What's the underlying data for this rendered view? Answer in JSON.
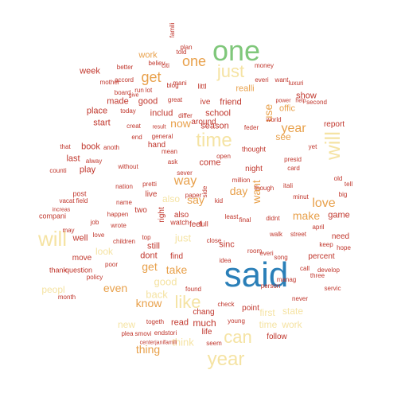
{
  "palette": {
    "red": "#c0362c",
    "orange": "#e8a04a",
    "cream": "#f5e3a3",
    "green": "#7fc77a",
    "blue": "#2a7fb8"
  },
  "words": [
    {
      "text": "said",
      "color": "blue"
    },
    {
      "text": "one",
      "color": "green"
    },
    {
      "text": "will",
      "color": "cream"
    },
    {
      "text": "will",
      "color": "cream"
    },
    {
      "text": "year",
      "color": "cream"
    },
    {
      "text": "just",
      "color": "cream"
    },
    {
      "text": "time",
      "color": "cream"
    },
    {
      "text": "like",
      "color": "cream"
    },
    {
      "text": "can",
      "color": "cream"
    },
    {
      "text": "get",
      "color": "orange"
    },
    {
      "text": "one",
      "color": "orange"
    },
    {
      "text": "year",
      "color": "orange"
    },
    {
      "text": "love",
      "color": "orange"
    },
    {
      "text": "way",
      "color": "orange"
    },
    {
      "text": "make",
      "color": "orange"
    },
    {
      "text": "know",
      "color": "orange"
    },
    {
      "text": "even",
      "color": "orange"
    },
    {
      "text": "thing",
      "color": "orange"
    },
    {
      "text": "take",
      "color": "orange"
    },
    {
      "text": "get",
      "color": "orange"
    },
    {
      "text": "day",
      "color": "orange"
    },
    {
      "text": "say",
      "color": "orange"
    },
    {
      "text": "now",
      "color": "orange"
    },
    {
      "text": "see",
      "color": "orange"
    },
    {
      "text": "use",
      "color": "orange"
    },
    {
      "text": "want",
      "color": "orange"
    },
    {
      "text": "just",
      "color": "cream"
    },
    {
      "text": "think",
      "color": "cream"
    },
    {
      "text": "back",
      "color": "cream"
    },
    {
      "text": "good",
      "color": "cream"
    },
    {
      "text": "peopl",
      "color": "cream"
    },
    {
      "text": "first",
      "color": "cream"
    },
    {
      "text": "state",
      "color": "cream"
    },
    {
      "text": "time",
      "color": "cream"
    },
    {
      "text": "work",
      "color": "cream"
    },
    {
      "text": "look",
      "color": "cream"
    },
    {
      "text": "new",
      "color": "cream"
    },
    {
      "text": "much",
      "color": "red"
    },
    {
      "text": "also",
      "color": "cream"
    },
    {
      "text": "work",
      "color": "orange"
    },
    {
      "text": "show",
      "color": "red"
    },
    {
      "text": "made",
      "color": "red"
    },
    {
      "text": "good",
      "color": "red"
    },
    {
      "text": "place",
      "color": "red"
    },
    {
      "text": "start",
      "color": "red"
    },
    {
      "text": "book",
      "color": "red"
    },
    {
      "text": "play",
      "color": "red"
    },
    {
      "text": "school",
      "color": "red"
    },
    {
      "text": "friend",
      "color": "red"
    },
    {
      "text": "season",
      "color": "red"
    },
    {
      "text": "come",
      "color": "red"
    },
    {
      "text": "includ",
      "color": "red"
    },
    {
      "text": "last",
      "color": "red"
    },
    {
      "text": "week",
      "color": "red"
    },
    {
      "text": "realli",
      "color": "orange"
    },
    {
      "text": "offic",
      "color": "orange"
    },
    {
      "text": "game",
      "color": "red"
    },
    {
      "text": "need",
      "color": "red"
    },
    {
      "text": "well",
      "color": "red"
    },
    {
      "text": "still",
      "color": "red"
    },
    {
      "text": "dont",
      "color": "red"
    },
    {
      "text": "find",
      "color": "red"
    },
    {
      "text": "sinc",
      "color": "red"
    },
    {
      "text": "point",
      "color": "red"
    },
    {
      "text": "follow",
      "color": "red"
    },
    {
      "text": "read",
      "color": "red"
    },
    {
      "text": "life",
      "color": "red"
    },
    {
      "text": "chang",
      "color": "red"
    },
    {
      "text": "hand",
      "color": "red"
    },
    {
      "text": "report",
      "color": "red"
    },
    {
      "text": "percent",
      "color": "red"
    },
    {
      "text": "move",
      "color": "red"
    },
    {
      "text": "night",
      "color": "red"
    },
    {
      "text": "famili",
      "color": "red"
    },
    {
      "text": "told",
      "color": "red"
    },
    {
      "text": "mani",
      "color": "red"
    },
    {
      "text": "plan",
      "color": "red"
    },
    {
      "text": "citi",
      "color": "red"
    },
    {
      "text": "blog",
      "color": "red"
    },
    {
      "text": "littl",
      "color": "red"
    },
    {
      "text": "ive",
      "color": "red"
    },
    {
      "text": "around",
      "color": "red"
    },
    {
      "text": "thought",
      "color": "red"
    },
    {
      "text": "right",
      "color": "red"
    },
    {
      "text": "two",
      "color": "red"
    },
    {
      "text": "live",
      "color": "red"
    },
    {
      "text": "also",
      "color": "red"
    },
    {
      "text": "feel",
      "color": "red"
    },
    {
      "text": "watch",
      "color": "red"
    },
    {
      "text": "full",
      "color": "red"
    },
    {
      "text": "happen",
      "color": "red"
    },
    {
      "text": "compani",
      "color": "red"
    },
    {
      "text": "post",
      "color": "red"
    },
    {
      "text": "question",
      "color": "red"
    },
    {
      "text": "thank",
      "color": "red"
    },
    {
      "text": "month",
      "color": "red"
    },
    {
      "text": "plea",
      "color": "red"
    },
    {
      "text": "smovi",
      "color": "red"
    },
    {
      "text": "endstori",
      "color": "red"
    },
    {
      "text": "togeth",
      "color": "red"
    },
    {
      "text": "centerjanifamili",
      "color": "red"
    },
    {
      "text": "seem",
      "color": "red"
    },
    {
      "text": "young",
      "color": "red"
    },
    {
      "text": "call",
      "color": "red"
    },
    {
      "text": "manag",
      "color": "red"
    },
    {
      "text": "person",
      "color": "red"
    },
    {
      "text": "never",
      "color": "red"
    },
    {
      "text": "servic",
      "color": "red"
    },
    {
      "text": "develop",
      "color": "red"
    },
    {
      "text": "hope",
      "color": "red"
    },
    {
      "text": "three",
      "color": "red"
    },
    {
      "text": "keep",
      "color": "red"
    },
    {
      "text": "big",
      "color": "red"
    },
    {
      "text": "old",
      "color": "red"
    },
    {
      "text": "second",
      "color": "red"
    },
    {
      "text": "money",
      "color": "red"
    },
    {
      "text": "everi",
      "color": "red"
    },
    {
      "text": "want",
      "color": "red"
    },
    {
      "text": "luxuri",
      "color": "red"
    },
    {
      "text": "better",
      "color": "red"
    },
    {
      "text": "believ",
      "color": "red"
    },
    {
      "text": "accord",
      "color": "red"
    },
    {
      "text": "run",
      "color": "red"
    },
    {
      "text": "lot",
      "color": "red"
    },
    {
      "text": "board",
      "color": "red"
    },
    {
      "text": "result",
      "color": "red"
    },
    {
      "text": "general",
      "color": "red"
    },
    {
      "text": "creat",
      "color": "red"
    },
    {
      "text": "end",
      "color": "red"
    },
    {
      "text": "mean",
      "color": "red"
    },
    {
      "text": "ask",
      "color": "red"
    },
    {
      "text": "nation",
      "color": "red"
    },
    {
      "text": "pretti",
      "color": "red"
    },
    {
      "text": "without",
      "color": "red"
    },
    {
      "text": "alway",
      "color": "red"
    },
    {
      "text": "that",
      "color": "red"
    },
    {
      "text": "anoth",
      "color": "red"
    },
    {
      "text": "vacat",
      "color": "red"
    },
    {
      "text": "field",
      "color": "red"
    },
    {
      "text": "increas",
      "color": "red"
    },
    {
      "text": "job",
      "color": "red"
    },
    {
      "text": "children",
      "color": "red"
    },
    {
      "text": "found",
      "color": "red"
    },
    {
      "text": "paper",
      "color": "red"
    },
    {
      "text": "least",
      "color": "red"
    },
    {
      "text": "final",
      "color": "red"
    },
    {
      "text": "million",
      "color": "red"
    },
    {
      "text": "though",
      "color": "red"
    },
    {
      "text": "itali",
      "color": "red"
    },
    {
      "text": "minut",
      "color": "red"
    },
    {
      "text": "didnt",
      "color": "red"
    },
    {
      "text": "walk",
      "color": "red"
    },
    {
      "text": "street",
      "color": "red"
    },
    {
      "text": "room",
      "color": "red"
    },
    {
      "text": "idea",
      "color": "red"
    },
    {
      "text": "policy",
      "color": "red"
    },
    {
      "text": "poor",
      "color": "red"
    },
    {
      "text": "wrote",
      "color": "red"
    },
    {
      "text": "feder",
      "color": "red"
    },
    {
      "text": "differ",
      "color": "red"
    },
    {
      "text": "name",
      "color": "red"
    },
    {
      "text": "tell",
      "color": "red"
    },
    {
      "text": "check",
      "color": "red"
    },
    {
      "text": "april",
      "color": "red"
    },
    {
      "text": "side",
      "color": "red"
    },
    {
      "text": "love",
      "color": "red"
    },
    {
      "text": "may",
      "color": "red"
    },
    {
      "text": "counti",
      "color": "red"
    },
    {
      "text": "presid",
      "color": "red"
    },
    {
      "text": "card",
      "color": "red"
    },
    {
      "text": "everi",
      "color": "red"
    },
    {
      "text": "song",
      "color": "red"
    },
    {
      "text": "yet",
      "color": "red"
    },
    {
      "text": "power",
      "color": "red"
    },
    {
      "text": "help",
      "color": "red"
    },
    {
      "text": "world",
      "color": "red"
    },
    {
      "text": "top",
      "color": "red"
    },
    {
      "text": "open",
      "color": "red"
    },
    {
      "text": "sever",
      "color": "red"
    },
    {
      "text": "great",
      "color": "red"
    },
    {
      "text": "today",
      "color": "red"
    },
    {
      "text": "kid",
      "color": "red"
    },
    {
      "text": "mother",
      "color": "red"
    },
    {
      "text": "give",
      "color": "red"
    },
    {
      "text": "close",
      "color": "red"
    }
  ]
}
